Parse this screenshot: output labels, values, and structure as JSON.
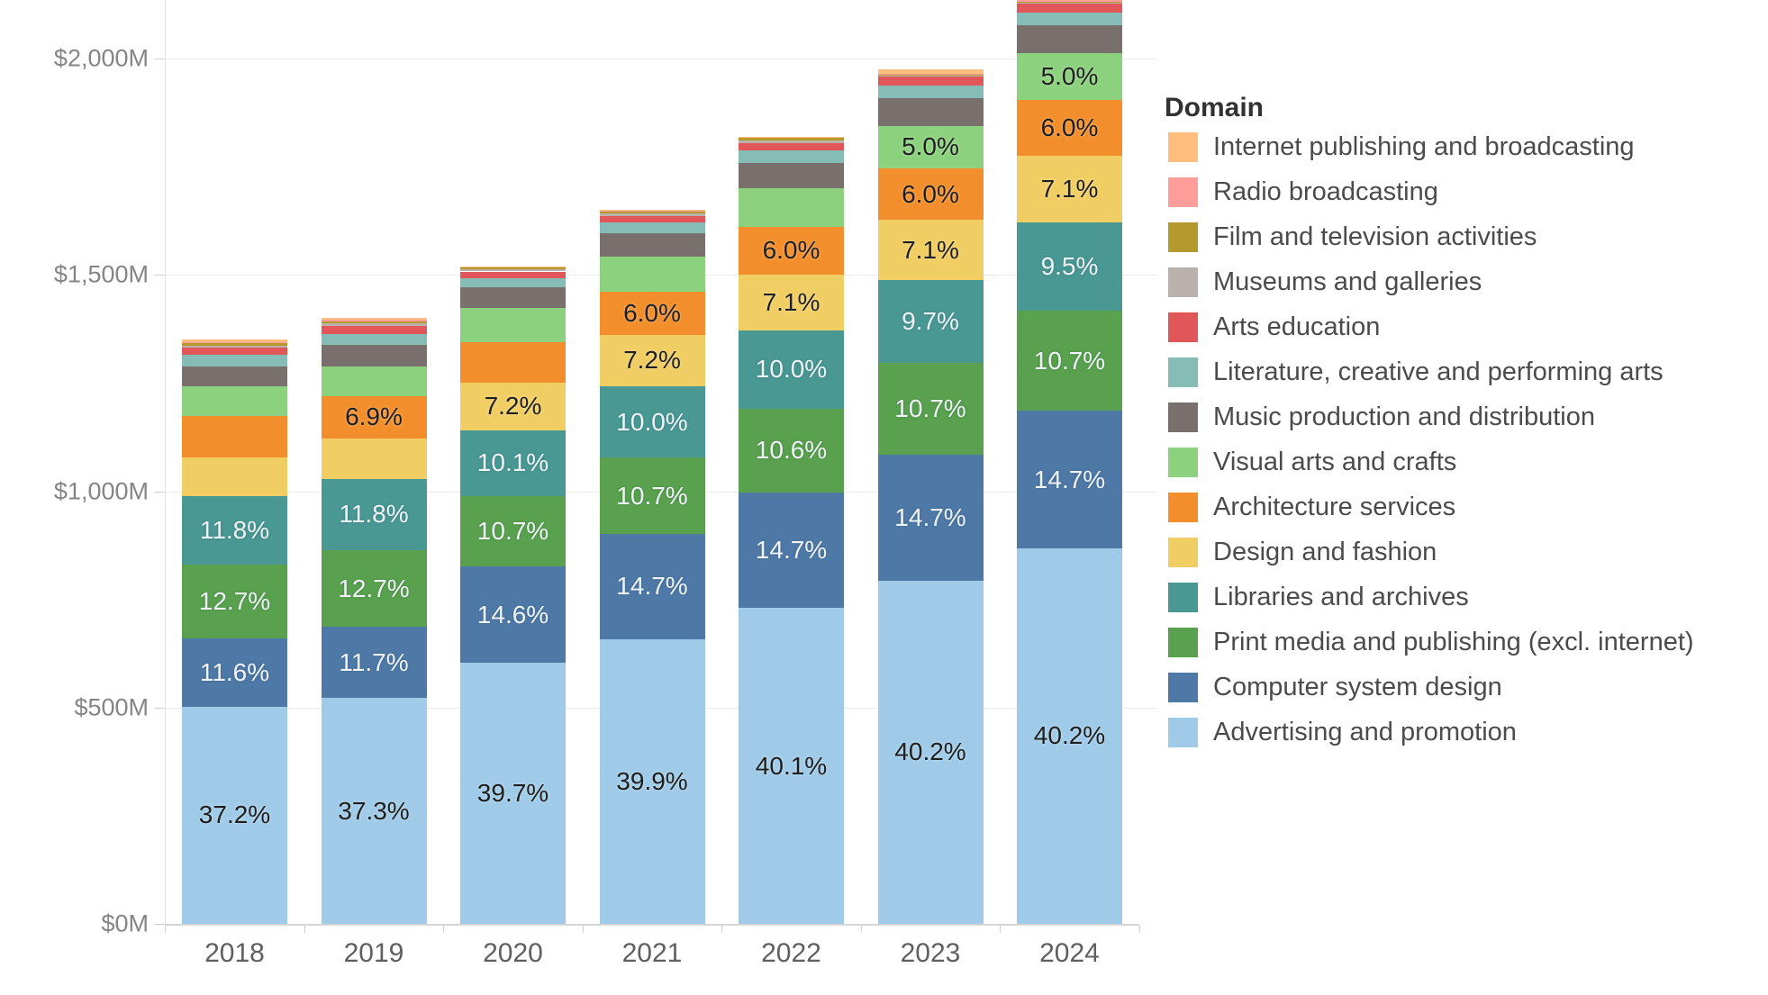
{
  "legend": {
    "title": "Domain"
  },
  "chart_data": {
    "type": "bar",
    "subtype": "stacked-vertical",
    "title": "",
    "xlabel": "",
    "ylabel": "",
    "x": [
      "2018",
      "2019",
      "2020",
      "2021",
      "2022",
      "2023",
      "2024"
    ],
    "totals_millions_usd": [
      1350,
      1400,
      1520,
      1650,
      1820,
      1975,
      2160
    ],
    "y_axis": {
      "unit": "$M",
      "grid": true,
      "ticks": [
        {
          "value": 0,
          "label": "$0M"
        },
        {
          "value": 500,
          "label": "$500M"
        },
        {
          "value": 1000,
          "label": "$1,000M"
        },
        {
          "value": 1500,
          "label": "$1,500M"
        },
        {
          "value": 2000,
          "label": "$2,000M"
        }
      ]
    },
    "legend_position": "right",
    "series_note": "values are percent of each year's total; stacking order bottom-to-top is the reverse of this list; labels are the percentage texts printed on segments (null = not shown)",
    "series": [
      {
        "name": "Internet publishing and broadcasting",
        "color": "#FFBE7D",
        "values": [
          0.4,
          0.3,
          0.1,
          0.1,
          0.1,
          0.5,
          0.25
        ],
        "labels": [
          null,
          null,
          null,
          null,
          null,
          null,
          null
        ]
      },
      {
        "name": "Radio broadcasting",
        "color": "#FF9D9A",
        "values": [
          0.1,
          0.2,
          0.1,
          0.1,
          0.1,
          0.1,
          1.1
        ],
        "labels": [
          null,
          null,
          null,
          null,
          null,
          null,
          null
        ]
      },
      {
        "name": "Film and television activities",
        "color": "#B6992D",
        "values": [
          0.5,
          0.4,
          0.3,
          0.3,
          0.3,
          0.1,
          0.05
        ],
        "labels": [
          null,
          null,
          null,
          null,
          null,
          null,
          null
        ]
      },
      {
        "name": "Museums and galleries",
        "color": "#BAB0AC",
        "values": [
          0.4,
          0.4,
          0.3,
          0.3,
          0.3,
          0.1,
          0.05
        ],
        "labels": [
          null,
          null,
          null,
          null,
          null,
          null,
          null
        ]
      },
      {
        "name": "Arts education",
        "color": "#E15759",
        "values": [
          1.2,
          1.3,
          1.0,
          1.0,
          1.0,
          1.1,
          1.0
        ],
        "labels": [
          null,
          null,
          null,
          null,
          null,
          null,
          null
        ]
      },
      {
        "name": "Literature, creative and performing arts",
        "color": "#86BCB6",
        "values": [
          1.9,
          1.8,
          1.4,
          1.5,
          1.6,
          1.5,
          1.35
        ],
        "labels": [
          null,
          null,
          null,
          null,
          null,
          null,
          null
        ]
      },
      {
        "name": "Music production and distribution",
        "color": "#79706E",
        "values": [
          3.4,
          3.6,
          3.1,
          3.2,
          3.2,
          3.2,
          3.0
        ],
        "labels": [
          null,
          null,
          null,
          null,
          null,
          null,
          null
        ]
      },
      {
        "name": "Visual arts and crafts",
        "color": "#8CD17D",
        "values": [
          5.1,
          4.9,
          5.2,
          5.0,
          4.9,
          5.0,
          5.0
        ],
        "labels": [
          null,
          null,
          null,
          null,
          null,
          "5.0%",
          "5.0%"
        ]
      },
      {
        "name": "Architecture services",
        "color": "#F28E2B",
        "values": [
          7.2,
          6.9,
          6.2,
          6.0,
          6.0,
          6.0,
          6.0
        ],
        "labels": [
          null,
          "6.9%",
          null,
          "6.0%",
          "6.0%",
          "6.0%",
          "6.0%"
        ]
      },
      {
        "name": "Design and fashion",
        "color": "#F1CE63",
        "values": [
          6.5,
          6.7,
          7.2,
          7.2,
          7.1,
          7.1,
          7.1
        ],
        "labels": [
          null,
          null,
          "7.2%",
          "7.2%",
          "7.1%",
          "7.1%",
          "7.1%"
        ]
      },
      {
        "name": "Libraries and archives",
        "color": "#499894",
        "values": [
          11.8,
          11.8,
          10.1,
          10.0,
          10.0,
          9.7,
          9.5
        ],
        "labels": [
          "11.8%",
          "11.8%",
          "10.1%",
          "10.0%",
          "10.0%",
          "9.7%",
          "9.5%"
        ]
      },
      {
        "name": "Print media and publishing (excl. internet)",
        "color": "#59A14F",
        "values": [
          12.7,
          12.7,
          10.7,
          10.7,
          10.6,
          10.7,
          10.7
        ],
        "labels": [
          "12.7%",
          "12.7%",
          "10.7%",
          "10.7%",
          "10.6%",
          "10.7%",
          "10.7%"
        ]
      },
      {
        "name": "Computer system design",
        "color": "#4E79A7",
        "values": [
          11.6,
          11.7,
          14.6,
          14.7,
          14.7,
          14.7,
          14.7
        ],
        "labels": [
          "11.6%",
          "11.7%",
          "14.6%",
          "14.7%",
          "14.7%",
          "14.7%",
          "14.7%"
        ]
      },
      {
        "name": "Advertising and promotion",
        "color": "#A0CBE8",
        "values": [
          37.2,
          37.3,
          39.7,
          39.9,
          40.1,
          40.2,
          40.2
        ],
        "labels": [
          "37.2%",
          "37.3%",
          "39.7%",
          "39.9%",
          "40.1%",
          "40.2%",
          "40.2%"
        ]
      }
    ]
  }
}
